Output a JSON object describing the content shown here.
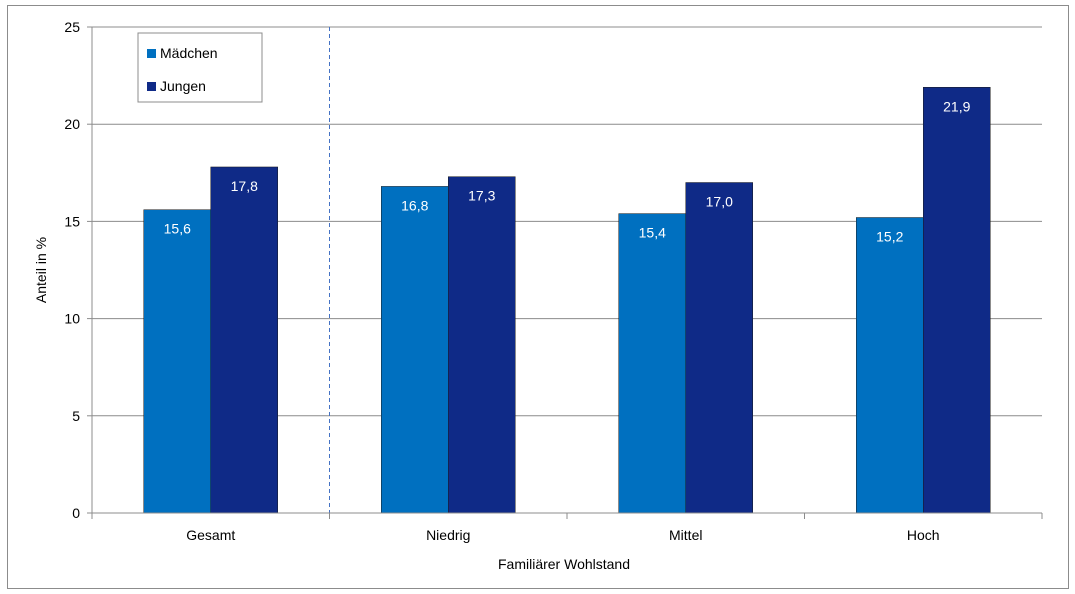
{
  "chart_data": {
    "type": "bar",
    "categories": [
      "Gesamt",
      "Niedrig",
      "Mittel",
      "Hoch"
    ],
    "series": [
      {
        "name": "Mädchen",
        "values": [
          15.6,
          16.8,
          15.4,
          15.2
        ],
        "labels": [
          "15,6",
          "16,8",
          "15,4",
          "15,2"
        ],
        "color": "#0070c0"
      },
      {
        "name": "Jungen",
        "values": [
          17.8,
          17.3,
          17.0,
          21.9
        ],
        "labels": [
          "17,8",
          "17,3",
          "17,0",
          "21,9"
        ],
        "color": "#0f2a87"
      }
    ],
    "xlabel": "Familiärer Wohlstand",
    "ylabel": "Anteil in %",
    "ylim": [
      0,
      25
    ],
    "yticks": [
      0,
      5,
      10,
      15,
      20,
      25
    ],
    "grid": true,
    "legend_position": "top-left",
    "separator_after_category": "Gesamt"
  }
}
